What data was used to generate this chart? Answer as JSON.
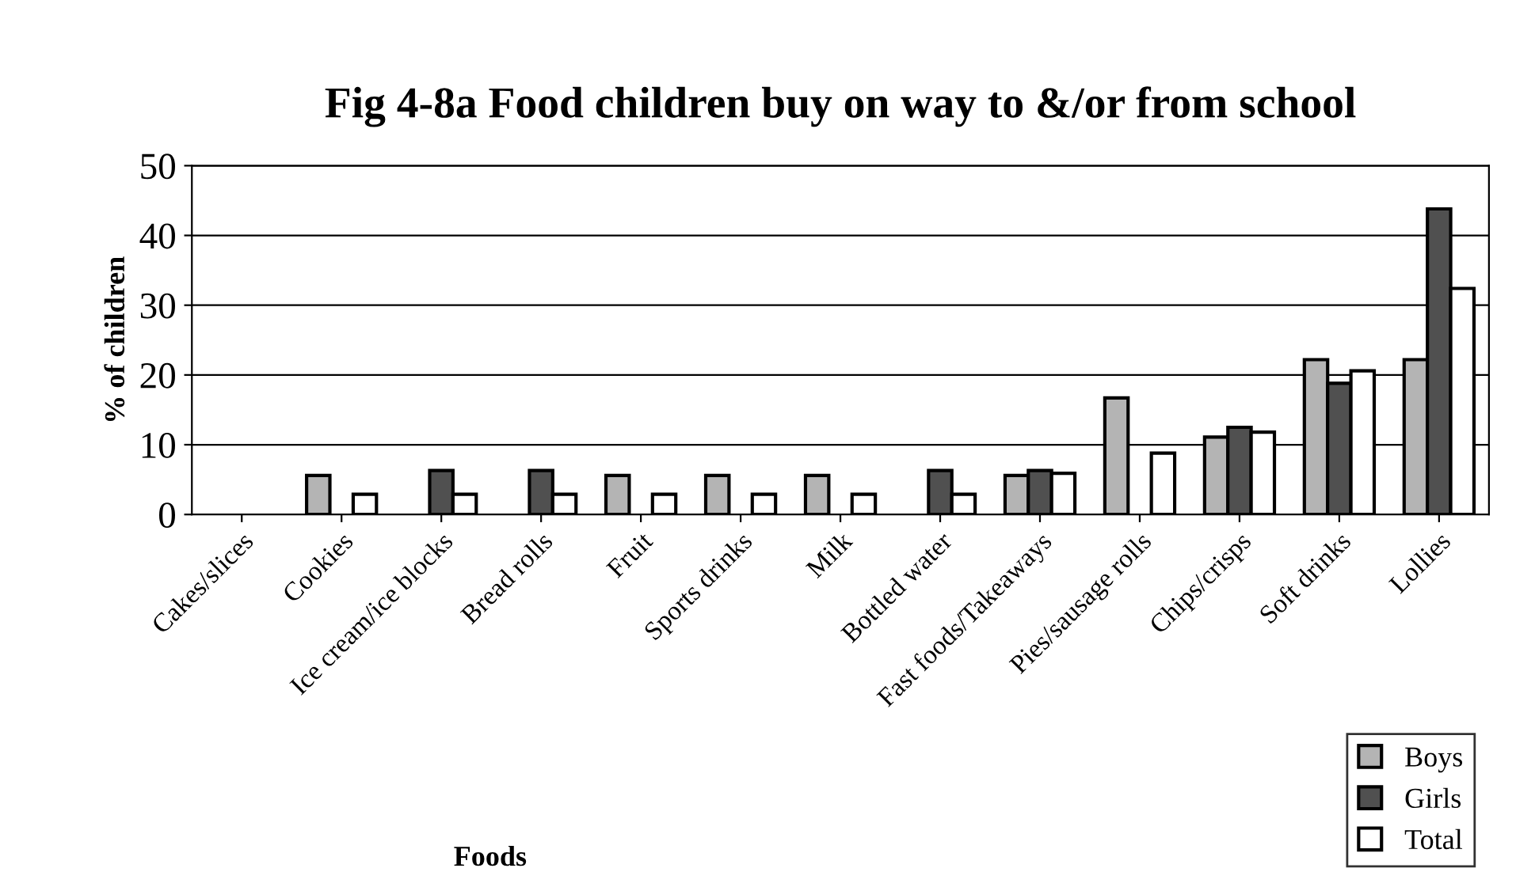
{
  "chart_data": {
    "type": "bar",
    "title": "Fig 4-8a Food children buy on way to &/or from school",
    "xlabel": "Foods",
    "ylabel": "% of children",
    "categories": [
      "Cakes/slices",
      "Cookies",
      "Ice cream/ice blocks",
      "Bread rolls",
      "Fruit",
      "Sports drinks",
      "Milk",
      "Bottled water",
      "Fast foods/Takeaways",
      "Pies/sausage rolls",
      "Chips/crisps",
      "Soft drinks",
      "Lollies"
    ],
    "series": [
      {
        "name": "Boys",
        "color": "#b4b4b4",
        "values": [
          0,
          5.6,
          0,
          0,
          5.6,
          5.6,
          5.6,
          0,
          5.6,
          16.7,
          11.1,
          22.2,
          22.2
        ]
      },
      {
        "name": "Girls",
        "color": "#505050",
        "values": [
          0,
          0,
          6.3,
          6.3,
          0,
          0,
          0,
          6.3,
          6.3,
          0,
          12.5,
          18.8,
          43.8
        ]
      },
      {
        "name": "Total",
        "color": "#ffffff",
        "values": [
          0,
          2.9,
          2.9,
          2.9,
          2.9,
          2.9,
          2.9,
          2.9,
          5.9,
          8.8,
          11.8,
          20.6,
          32.4
        ]
      }
    ],
    "ylim": [
      0,
      50
    ],
    "yticks": [
      0,
      10,
      20,
      30,
      40,
      50
    ],
    "grid": "y",
    "legend": "bottom right"
  }
}
